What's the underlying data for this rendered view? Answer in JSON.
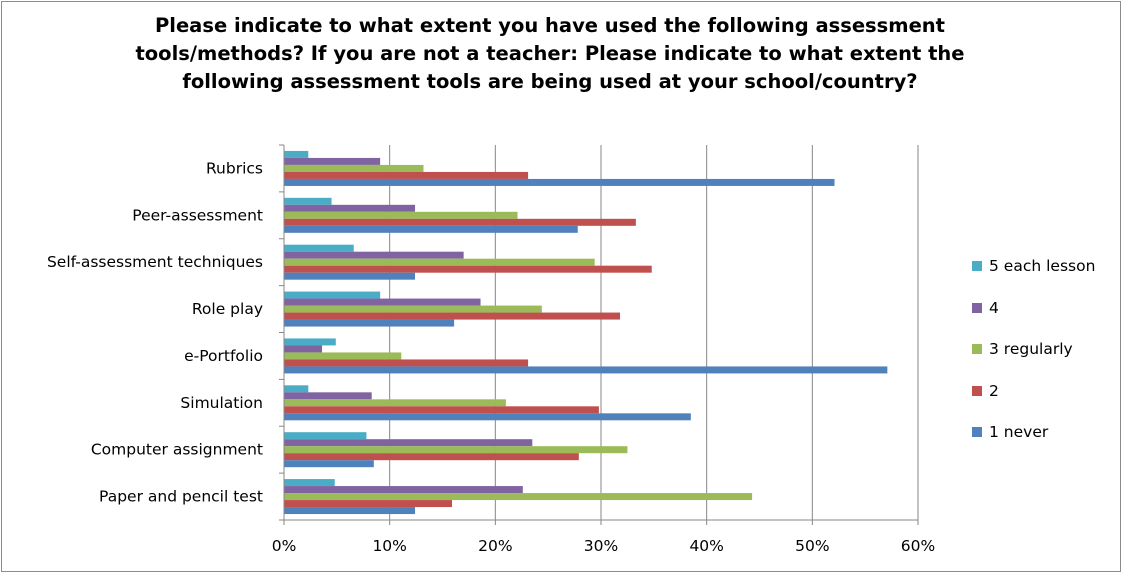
{
  "chart_data": {
    "type": "bar",
    "orientation": "horizontal",
    "title": "Please indicate to what extent you have used the following assessment tools/methods? If you are not a teacher: Please indicate to what extent the following assessment tools are being used at your school/country?",
    "title_lines": [
      "Please indicate to what extent you have used the following assessment",
      "tools/methods? If you are not a teacher: Please indicate to what extent the",
      "following assessment tools are being used at your school/country?"
    ],
    "categories": [
      "Rubrics",
      "Peer-assessment",
      "Self-assessment techniques",
      "Role play",
      "e-Portfolio",
      "Simulation",
      "Computer assignment",
      "Paper and pencil test"
    ],
    "series": [
      {
        "name": "5 each lesson",
        "color": "#4bacc6",
        "values": [
          2.3,
          4.5,
          6.6,
          9.1,
          4.9,
          2.3,
          7.8,
          4.8
        ]
      },
      {
        "name": "4",
        "color": "#8064a2",
        "values": [
          9.1,
          12.4,
          17.0,
          18.6,
          3.6,
          8.3,
          23.5,
          22.6
        ]
      },
      {
        "name": "3 regularly",
        "color": "#9bbb59",
        "values": [
          13.2,
          22.1,
          29.4,
          24.4,
          11.1,
          21.0,
          32.5,
          44.3
        ]
      },
      {
        "name": "2",
        "color": "#c0504d",
        "values": [
          23.1,
          33.3,
          34.8,
          31.8,
          23.1,
          29.8,
          27.9,
          15.9
        ]
      },
      {
        "name": "1 never",
        "color": "#4f81bd",
        "values": [
          52.1,
          27.8,
          12.4,
          16.1,
          57.1,
          38.5,
          8.5,
          12.4
        ]
      }
    ],
    "xlim": [
      0,
      60
    ],
    "xticks": [
      0,
      10,
      20,
      30,
      40,
      50,
      60
    ],
    "xtick_labels": [
      "0%",
      "10%",
      "20%",
      "30%",
      "40%",
      "50%",
      "60%"
    ],
    "xlabel": "",
    "ylabel": "",
    "grid": true,
    "legend_position": "right"
  }
}
